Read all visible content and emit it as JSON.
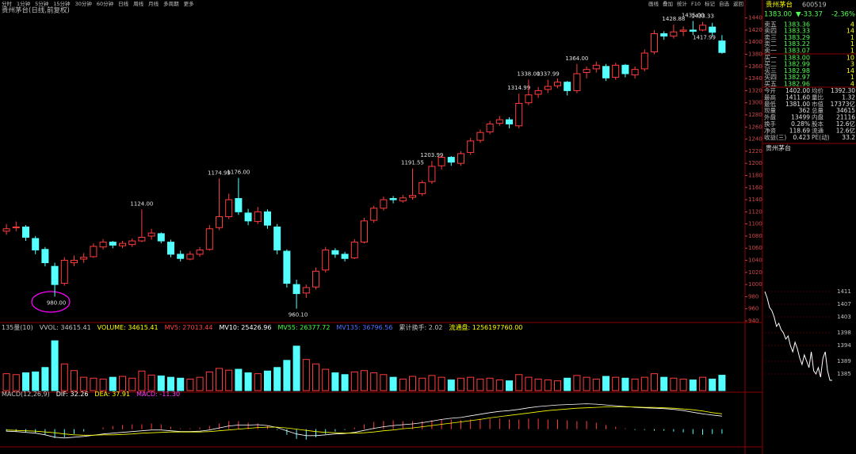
{
  "toolbar": {
    "periods": [
      "分时",
      "1分钟",
      "5分钟",
      "15分钟",
      "30分钟",
      "60分钟",
      "日线",
      "周线",
      "月线",
      "多周期",
      "更多"
    ],
    "tools": [
      "画线",
      "叠加",
      "统计",
      "F10",
      "标记",
      "自选",
      "返回"
    ]
  },
  "quote": {
    "name": "贵州茅台",
    "code": "600519",
    "price": "1383.00",
    "change": "▼-33.37",
    "pct": "-2.36%",
    "asks": [
      [
        "卖五",
        "1383.36",
        "4"
      ],
      [
        "卖四",
        "1383.33",
        "14"
      ],
      [
        "卖三",
        "1383.29",
        "1"
      ],
      [
        "卖二",
        "1383.22",
        "1"
      ],
      [
        "卖一",
        "1383.07",
        "1"
      ]
    ],
    "bids": [
      [
        "买一",
        "1383.00",
        "10"
      ],
      [
        "买二",
        "1382.99",
        "3"
      ],
      [
        "买三",
        "1382.98",
        "14"
      ],
      [
        "买四",
        "1382.97",
        "1"
      ],
      [
        "买五",
        "1382.96",
        "4"
      ]
    ],
    "stats": [
      [
        "今开",
        "1402.00",
        "均价",
        "1392.30"
      ],
      [
        "最高",
        "1411.60",
        "量比",
        "1.32"
      ],
      [
        "最低",
        "1381.00",
        "市值",
        "17373亿"
      ],
      [
        "现量",
        "362",
        "总量",
        "34615"
      ],
      [
        "外盘",
        "13499",
        "内盘",
        "21116"
      ],
      [
        "换手",
        "0.28%",
        "股本",
        "12.6亿"
      ],
      [
        "净资",
        "118.69",
        "流通",
        "12.6亿"
      ],
      [
        "收益(三)",
        "0.423",
        "PE(动)",
        "33.2"
      ]
    ],
    "section": "贵州茅台"
  },
  "chart_data": [
    {
      "type": "candlestick",
      "title": "贵州茅台(日线,前复权)",
      "up_color": "#ff3c3c",
      "down_color": "#54ffff",
      "ylim": [
        940,
        1450
      ],
      "yticks": [
        940,
        960,
        980,
        1000,
        1020,
        1040,
        1060,
        1080,
        1100,
        1120,
        1140,
        1160,
        1180,
        1200,
        1220,
        1240,
        1260,
        1280,
        1300,
        1320,
        1340,
        1360,
        1380,
        1400,
        1420,
        1440
      ],
      "open": [
        1088,
        1094,
        1095,
        1076,
        1058,
        1030,
        1002,
        1036,
        1042,
        1046,
        1062,
        1070,
        1064,
        1066,
        1072,
        1080,
        1084,
        1070,
        1050,
        1042,
        1050,
        1058,
        1094,
        1112,
        1142,
        1118,
        1104,
        1120,
        1095,
        1055,
        1000,
        986,
        996,
        1024,
        1056,
        1050,
        1044,
        1070,
        1106,
        1126,
        1142,
        1138,
        1144,
        1150,
        1170,
        1196,
        1210,
        1200,
        1218,
        1238,
        1252,
        1266,
        1272,
        1262,
        1300,
        1314,
        1322,
        1328,
        1334,
        1320,
        1350,
        1356,
        1360,
        1342,
        1362,
        1346,
        1356,
        1384,
        1414,
        1410,
        1418,
        1420,
        1420,
        1425,
        1402
      ],
      "high": [
        1100,
        1104,
        1098,
        1080,
        1062,
        1036,
        1045,
        1048,
        1052,
        1068,
        1075,
        1072,
        1072,
        1076,
        1124,
        1092,
        1086,
        1074,
        1056,
        1055,
        1062,
        1098,
        1174.99,
        1150,
        1176,
        1125,
        1128,
        1124,
        1100,
        1058,
        1008,
        1000,
        1028,
        1062,
        1060,
        1054,
        1075,
        1110,
        1130,
        1145,
        1146,
        1148,
        1191.55,
        1172,
        1203.99,
        1214,
        1212,
        1220,
        1242,
        1256,
        1270,
        1278,
        1276,
        1314.99,
        1338,
        1326,
        1337.99,
        1340,
        1336,
        1364,
        1360,
        1368,
        1364,
        1366,
        1364,
        1360,
        1388,
        1420,
        1418,
        1428.88,
        1426,
        1435,
        1433.33,
        1432,
        1411.6
      ],
      "low": [
        1082,
        1088,
        1072,
        1050,
        1030,
        980,
        998,
        1030,
        1036,
        1044,
        1058,
        1060,
        1060,
        1062,
        1070,
        1074,
        1068,
        1045,
        1038,
        1040,
        1046,
        1056,
        1090,
        1108,
        1115,
        1098,
        1100,
        1092,
        1050,
        995,
        960.1,
        978,
        992,
        1020,
        1044,
        1038,
        1042,
        1068,
        1102,
        1122,
        1134,
        1135,
        1140,
        1146,
        1166,
        1190,
        1196,
        1196,
        1214,
        1234,
        1248,
        1262,
        1258,
        1258,
        1296,
        1308,
        1316,
        1324,
        1312,
        1316,
        1340,
        1350,
        1336,
        1338,
        1342,
        1340,
        1352,
        1380,
        1404,
        1406,
        1410,
        1412,
        1417.99,
        1410,
        1381
      ],
      "close": [
        1092,
        1095,
        1078,
        1057,
        1036,
        1000,
        1040,
        1040,
        1045,
        1063,
        1070,
        1065,
        1068,
        1072,
        1078,
        1085,
        1072,
        1050,
        1043,
        1050,
        1057,
        1092,
        1112,
        1140,
        1120,
        1105,
        1120,
        1098,
        1057,
        1002,
        985,
        995,
        1022,
        1057,
        1050,
        1043,
        1070,
        1105,
        1126,
        1140,
        1140,
        1143,
        1147,
        1168,
        1195,
        1210,
        1202,
        1216,
        1237,
        1251,
        1265,
        1272,
        1265,
        1299,
        1313,
        1320,
        1327,
        1334,
        1320,
        1348,
        1355,
        1362,
        1341,
        1362,
        1348,
        1355,
        1382,
        1414,
        1410,
        1417,
        1420,
        1418,
        1428,
        1416.37,
        1383
      ],
      "high_labels": [
        null,
        null,
        null,
        null,
        null,
        null,
        null,
        null,
        null,
        null,
        null,
        null,
        null,
        null,
        "1124.00",
        null,
        null,
        null,
        null,
        null,
        null,
        null,
        "1174.99",
        null,
        "1176.00",
        null,
        null,
        null,
        null,
        null,
        null,
        null,
        null,
        null,
        null,
        null,
        null,
        null,
        null,
        null,
        null,
        null,
        "1191.55",
        null,
        "1203.99",
        null,
        null,
        null,
        null,
        null,
        null,
        null,
        null,
        "1314.99",
        "1338.00",
        null,
        "1337.99",
        null,
        null,
        "1364.00",
        null,
        null,
        null,
        null,
        null,
        null,
        null,
        null,
        null,
        "1428.88",
        null,
        "1435.00",
        "1433.33",
        null,
        null
      ],
      "low_labels": [
        null,
        null,
        null,
        null,
        null,
        "980.00",
        null,
        null,
        null,
        null,
        null,
        null,
        null,
        null,
        null,
        null,
        null,
        null,
        null,
        null,
        null,
        null,
        null,
        null,
        null,
        null,
        null,
        null,
        null,
        null,
        "960.10",
        null,
        null,
        null,
        null,
        null,
        null,
        null,
        null,
        null,
        null,
        null,
        null,
        null,
        null,
        null,
        null,
        null,
        null,
        null,
        null,
        null,
        null,
        null,
        null,
        null,
        null,
        null,
        null,
        null,
        null,
        null,
        null,
        null,
        null,
        null,
        null,
        null,
        null,
        null,
        null,
        null,
        "1417.99",
        null,
        null
      ]
    },
    {
      "type": "bar",
      "ylim": [
        0,
        130000
      ],
      "indicators": [
        {
          "text": "135量(10)",
          "color": "#c0c0c0"
        },
        {
          "text": "VVOL: 34615.41",
          "color": "#c0c0c0"
        },
        {
          "text": "VOLUME: 34615.41",
          "color": "#ffff00"
        },
        {
          "text": "MV5: 27013.44",
          "color": "#ff4040"
        },
        {
          "text": "MV10: 25426.96",
          "color": "#ffffff"
        },
        {
          "text": "MV55: 26377.72",
          "color": "#40ff40"
        },
        {
          "text": "MV135: 36796.56",
          "color": "#5070ff"
        },
        {
          "text": "累计换手: 2.02",
          "color": "#c0c0c0"
        },
        {
          "text": "流通盘: 1256197760.00",
          "color": "#ffff00"
        }
      ],
      "values": [
        38000,
        36000,
        40000,
        42000,
        52000,
        112000,
        60000,
        45000,
        30000,
        28000,
        26000,
        30000,
        32000,
        28000,
        44000,
        35000,
        33000,
        30000,
        28000,
        26000,
        30000,
        42000,
        50000,
        46000,
        48000,
        40000,
        38000,
        44000,
        52000,
        68000,
        100000,
        70000,
        60000,
        48000,
        40000,
        36000,
        42000,
        45000,
        40000,
        36000,
        30000,
        26000,
        32000,
        28000,
        34000,
        30000,
        24000,
        28000,
        30000,
        26000,
        28000,
        24000,
        22000,
        36000,
        30000,
        26000,
        24000,
        22000,
        28000,
        34000,
        30000,
        26000,
        32000,
        30000,
        28000,
        26000,
        30000,
        38000,
        30000,
        28000,
        26000,
        24000,
        30000,
        26000,
        34615.41
      ]
    },
    {
      "type": "macd",
      "ylim": [
        -40,
        70
      ],
      "dif_color": "#ffffff",
      "dea_color": "#ffff00",
      "up_color": "#ff3c3c",
      "down_color": "#54ffff",
      "indicators": [
        {
          "text": "MACD(12,26,9)",
          "color": "#c0c0c0"
        },
        {
          "text": "DIF: 32.26",
          "color": "#ffffff"
        },
        {
          "text": "DEA: 37.91",
          "color": "#ffff00"
        },
        {
          "text": "MACD: -11.30",
          "color": "#ff40ff"
        }
      ],
      "dif": [
        -5,
        -6,
        -8,
        -10,
        -14,
        -20,
        -22,
        -20,
        -18,
        -15,
        -12,
        -10,
        -8,
        -6,
        -4,
        -2,
        -2,
        -4,
        -6,
        -6,
        -5,
        -2,
        3,
        8,
        10,
        10,
        11,
        9,
        4,
        -4,
        -12,
        -16,
        -16,
        -14,
        -12,
        -11,
        -8,
        -3,
        2,
        6,
        9,
        11,
        13,
        16,
        20,
        24,
        27,
        29,
        33,
        37,
        41,
        44,
        46,
        49,
        53,
        56,
        58,
        60,
        61,
        62,
        63,
        62,
        60,
        58,
        56,
        54,
        53,
        52,
        51,
        49,
        46,
        42,
        38,
        35,
        32.26
      ],
      "dea": [
        -2,
        -3,
        -4,
        -5,
        -7,
        -9,
        -12,
        -14,
        -15,
        -15,
        -14,
        -14,
        -13,
        -12,
        -10,
        -9,
        -8,
        -7,
        -7,
        -7,
        -7,
        -6,
        -4,
        -2,
        0,
        2,
        4,
        5,
        5,
        3,
        0,
        -3,
        -6,
        -8,
        -9,
        -10,
        -10,
        -9,
        -7,
        -4,
        -2,
        1,
        3,
        6,
        9,
        12,
        15,
        18,
        21,
        24,
        28,
        31,
        34,
        37,
        40,
        43,
        46,
        48,
        50,
        52,
        53,
        54,
        55,
        55,
        55,
        55,
        54,
        54,
        53,
        52,
        50,
        48,
        45,
        41,
        37.91
      ],
      "macd": [
        -6,
        -6,
        -8,
        -10,
        -14,
        -22,
        -20,
        -12,
        -6,
        0,
        4,
        8,
        10,
        12,
        12,
        14,
        12,
        6,
        2,
        2,
        4,
        8,
        14,
        20,
        20,
        16,
        14,
        8,
        -2,
        -14,
        -24,
        -26,
        -20,
        -12,
        -6,
        -2,
        4,
        12,
        18,
        20,
        22,
        20,
        20,
        20,
        22,
        24,
        24,
        22,
        24,
        26,
        26,
        26,
        24,
        24,
        26,
        26,
        24,
        24,
        22,
        20,
        20,
        16,
        10,
        6,
        2,
        -2,
        -2,
        -4,
        -4,
        -6,
        -8,
        -12,
        -14,
        -12,
        -11.3
      ]
    },
    {
      "type": "line",
      "color": "#ffffff",
      "ylim": [
        1381,
        1413
      ],
      "yticks": [
        1385,
        1389,
        1394,
        1398,
        1403,
        1407,
        1411
      ],
      "values": [
        1411,
        1409,
        1406,
        1405,
        1403,
        1400,
        1401,
        1399,
        1398,
        1396,
        1397,
        1394,
        1392,
        1395,
        1393,
        1390,
        1388,
        1391,
        1389,
        1387,
        1392,
        1386,
        1385,
        1387,
        1384,
        1390,
        1392,
        1386,
        1383,
        1383
      ]
    }
  ]
}
